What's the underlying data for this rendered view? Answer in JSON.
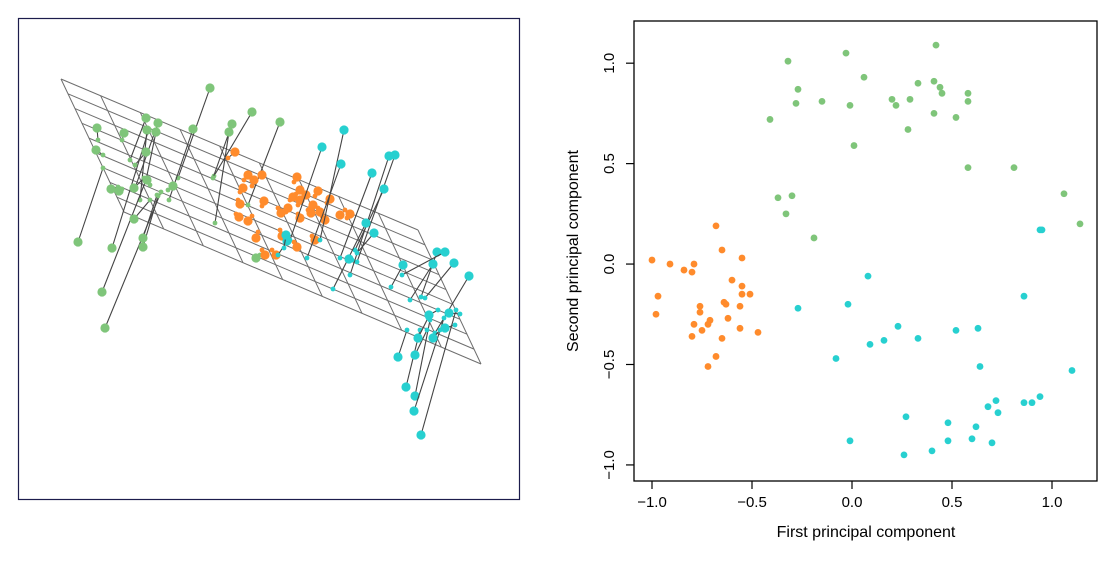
{
  "colors": {
    "green": "#7fc57a",
    "orange": "#ff8b2c",
    "cyan": "#27d0d0",
    "plane": "#6e6e6e",
    "left_frame": "#1c1c4c"
  },
  "chart_data": [
    {
      "type": "scatter3d",
      "title": "",
      "grid": false,
      "description_visible": "observations shown with lines down to a fitted plane"
    },
    {
      "type": "scatter",
      "title": "",
      "xlabel": "First principal component",
      "ylabel": "Second principal component",
      "xlim": [
        -1.09,
        1.225
      ],
      "ylim": [
        -1.08,
        1.21
      ],
      "xticks": [
        "−1.0",
        "−0.5",
        "0.0",
        "0.5",
        "1.0"
      ],
      "xtick_values": [
        -1.0,
        -0.5,
        0.0,
        0.5,
        1.0
      ],
      "yticks": [
        "−1.0",
        "−0.5",
        "0.0",
        "0.5",
        "1.0"
      ],
      "ytick_values": [
        -1.0,
        -0.5,
        0.0,
        0.5,
        1.0
      ],
      "grid": false,
      "series": [
        {
          "color": "#7fc57a",
          "points": [
            [
              0.42,
              1.09
            ],
            [
              -0.03,
              1.05
            ],
            [
              -0.32,
              1.01
            ],
            [
              0.06,
              0.93
            ],
            [
              0.33,
              0.9
            ],
            [
              0.41,
              0.91
            ],
            [
              0.44,
              0.88
            ],
            [
              0.45,
              0.85
            ],
            [
              0.58,
              0.85
            ],
            [
              0.58,
              0.81
            ],
            [
              -0.27,
              0.87
            ],
            [
              -0.28,
              0.8
            ],
            [
              -0.15,
              0.81
            ],
            [
              -0.01,
              0.79
            ],
            [
              0.2,
              0.82
            ],
            [
              0.22,
              0.79
            ],
            [
              0.29,
              0.82
            ],
            [
              0.41,
              0.75
            ],
            [
              0.52,
              0.73
            ],
            [
              0.28,
              0.67
            ],
            [
              -0.41,
              0.72
            ],
            [
              0.01,
              0.59
            ],
            [
              0.58,
              0.48
            ],
            [
              0.81,
              0.48
            ],
            [
              1.06,
              0.35
            ],
            [
              1.14,
              0.2
            ],
            [
              -0.37,
              0.33
            ],
            [
              -0.3,
              0.34
            ],
            [
              -0.33,
              0.25
            ],
            [
              -0.19,
              0.13
            ]
          ]
        },
        {
          "color": "#ff8b2c",
          "points": [
            [
              -0.68,
              0.19
            ],
            [
              -0.65,
              0.07
            ],
            [
              -1.0,
              0.02
            ],
            [
              -0.91,
              0.0
            ],
            [
              -0.84,
              -0.03
            ],
            [
              -0.79,
              0.0
            ],
            [
              -0.8,
              -0.04
            ],
            [
              -0.55,
              0.03
            ],
            [
              -0.6,
              -0.08
            ],
            [
              -0.55,
              -0.11
            ],
            [
              -0.55,
              -0.15
            ],
            [
              -0.51,
              -0.15
            ],
            [
              -0.97,
              -0.16
            ],
            [
              -0.98,
              -0.25
            ],
            [
              -0.76,
              -0.21
            ],
            [
              -0.76,
              -0.24
            ],
            [
              -0.64,
              -0.19
            ],
            [
              -0.63,
              -0.2
            ],
            [
              -0.56,
              -0.21
            ],
            [
              -0.71,
              -0.28
            ],
            [
              -0.72,
              -0.3
            ],
            [
              -0.79,
              -0.3
            ],
            [
              -0.62,
              -0.27
            ],
            [
              -0.75,
              -0.33
            ],
            [
              -0.8,
              -0.36
            ],
            [
              -0.65,
              -0.37
            ],
            [
              -0.56,
              -0.32
            ],
            [
              -0.47,
              -0.34
            ],
            [
              -0.68,
              -0.46
            ],
            [
              -0.72,
              -0.51
            ]
          ]
        },
        {
          "color": "#27d0d0",
          "points": [
            [
              0.94,
              0.17
            ],
            [
              0.95,
              0.17
            ],
            [
              0.08,
              -0.06
            ],
            [
              -0.27,
              -0.22
            ],
            [
              -0.02,
              -0.2
            ],
            [
              0.86,
              -0.16
            ],
            [
              0.23,
              -0.31
            ],
            [
              0.09,
              -0.4
            ],
            [
              0.16,
              -0.38
            ],
            [
              0.33,
              -0.37
            ],
            [
              0.52,
              -0.33
            ],
            [
              0.63,
              -0.32
            ],
            [
              -0.08,
              -0.47
            ],
            [
              0.64,
              -0.51
            ],
            [
              1.1,
              -0.53
            ],
            [
              0.94,
              -0.66
            ],
            [
              0.86,
              -0.69
            ],
            [
              0.9,
              -0.69
            ],
            [
              0.72,
              -0.68
            ],
            [
              0.68,
              -0.71
            ],
            [
              0.73,
              -0.74
            ],
            [
              0.27,
              -0.76
            ],
            [
              0.48,
              -0.79
            ],
            [
              0.62,
              -0.81
            ],
            [
              -0.01,
              -0.88
            ],
            [
              0.48,
              -0.88
            ],
            [
              0.6,
              -0.87
            ],
            [
              0.7,
              -0.89
            ],
            [
              0.4,
              -0.93
            ],
            [
              0.26,
              -0.95
            ]
          ]
        }
      ]
    }
  ]
}
